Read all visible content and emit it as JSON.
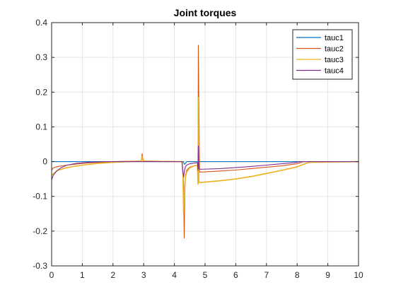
{
  "chart_data": {
    "type": "line",
    "title": "Joint torques",
    "xlabel": "",
    "ylabel": "",
    "xlim": [
      0,
      10
    ],
    "ylim": [
      -0.3,
      0.4
    ],
    "xticks": [
      "0",
      "1",
      "2",
      "3",
      "4",
      "5",
      "6",
      "7",
      "8",
      "9",
      "10"
    ],
    "yticks": [
      "-0.3",
      "-0.2",
      "-0.1",
      "0",
      "0.1",
      "0.2",
      "0.3",
      "0.4"
    ],
    "grid": true,
    "legend_position": "top-right",
    "series": [
      {
        "name": "tauc1",
        "color": "#0072BD",
        "x": [
          0,
          4.3,
          4.31,
          4.33,
          4.37,
          4.4,
          10
        ],
        "y": [
          0,
          0,
          -0.005,
          -0.008,
          -0.004,
          0,
          0
        ]
      },
      {
        "name": "tauc2",
        "color": "#D95319",
        "x": [
          0,
          0.05,
          0.2,
          0.5,
          1,
          1.5,
          2,
          2.5,
          2.92,
          2.95,
          2.97,
          3.0,
          3.05,
          4.25,
          4.3,
          4.32,
          4.34,
          4.36,
          4.4,
          4.5,
          4.65,
          4.75,
          4.77,
          4.78,
          4.8,
          4.82,
          4.85,
          4.9,
          5.5,
          6,
          6.5,
          7,
          7.5,
          8,
          8.1,
          8.2,
          10
        ],
        "y": [
          -0.025,
          -0.018,
          -0.014,
          -0.01,
          -0.005,
          -0.002,
          0,
          0.001,
          0.002,
          0.023,
          0.008,
          0.003,
          0.002,
          0,
          -0.06,
          -0.22,
          -0.09,
          -0.04,
          -0.025,
          -0.016,
          -0.012,
          -0.01,
          -0.03,
          0.335,
          0.15,
          -0.03,
          -0.03,
          -0.03,
          -0.027,
          -0.024,
          -0.02,
          -0.016,
          -0.012,
          -0.006,
          -0.003,
          0,
          0
        ]
      },
      {
        "name": "tauc3",
        "color": "#EDB120",
        "x": [
          0,
          0.05,
          0.2,
          0.5,
          1,
          1.5,
          2,
          2.5,
          2.92,
          2.95,
          2.97,
          3.0,
          3.05,
          4.25,
          4.28,
          4.3,
          4.32,
          4.34,
          4.36,
          4.4,
          4.5,
          4.65,
          4.75,
          4.77,
          4.78,
          4.79,
          4.8,
          4.85,
          5.5,
          6,
          6.5,
          7,
          7.5,
          8,
          8.2,
          8.4,
          10
        ],
        "y": [
          -0.04,
          -0.035,
          -0.025,
          -0.017,
          -0.01,
          -0.005,
          -0.002,
          0,
          0.001,
          0.015,
          0.005,
          0.002,
          0.001,
          0,
          -0.04,
          -0.15,
          -0.11,
          -0.07,
          -0.045,
          -0.03,
          -0.018,
          -0.012,
          -0.01,
          -0.065,
          0.185,
          0.05,
          -0.06,
          -0.06,
          -0.055,
          -0.05,
          -0.043,
          -0.034,
          -0.025,
          -0.015,
          -0.008,
          -0.002,
          0
        ]
      },
      {
        "name": "tauc4",
        "color": "#7E2F8E",
        "x": [
          0,
          0.05,
          0.15,
          0.3,
          0.5,
          0.8,
          1.2,
          1.8,
          2.5,
          4.25,
          4.28,
          4.3,
          4.33,
          4.36,
          4.4,
          4.5,
          4.65,
          4.75,
          4.77,
          4.78,
          4.8,
          4.85,
          5.5,
          6,
          6.5,
          7,
          7.5,
          7.9,
          8.1,
          10
        ],
        "y": [
          -0.052,
          -0.04,
          -0.028,
          -0.018,
          -0.01,
          -0.005,
          -0.002,
          0,
          0,
          0,
          -0.03,
          -0.045,
          -0.025,
          -0.015,
          -0.01,
          -0.006,
          -0.004,
          -0.003,
          -0.025,
          0.045,
          -0.02,
          -0.022,
          -0.02,
          -0.017,
          -0.014,
          -0.01,
          -0.006,
          -0.003,
          0,
          0
        ]
      }
    ]
  }
}
